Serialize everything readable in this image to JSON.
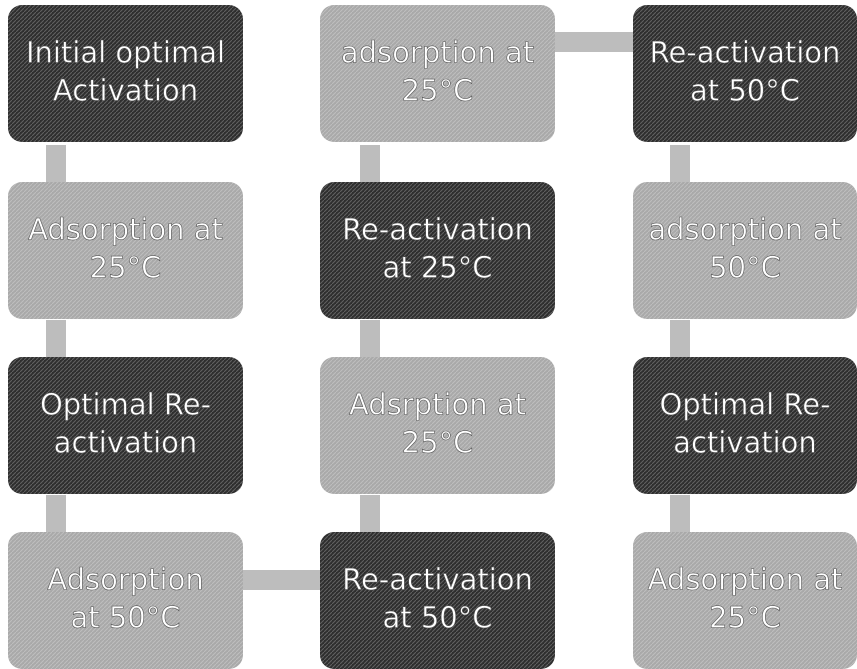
{
  "nodes": [
    {
      "lines": [
        "Initial optimal",
        "Activation"
      ],
      "color": "#2e2e2e"
    },
    {
      "lines": [
        "adsorption at",
        "25°C"
      ],
      "color": "#a9a9a9"
    },
    {
      "lines": [
        "Re-activation",
        "at 50°C"
      ],
      "color": "#2e2e2e"
    },
    {
      "lines": [
        "Adsorption at",
        "25°C"
      ],
      "color": "#a9a9a9"
    },
    {
      "lines": [
        "Re-activation",
        "at 25°C"
      ],
      "color": "#2e2e2e"
    },
    {
      "lines": [
        "adsorption at",
        "50°C"
      ],
      "color": "#a9a9a9"
    },
    {
      "lines": [
        "Optimal Re-",
        "activation"
      ],
      "color": "#2e2e2e"
    },
    {
      "lines": [
        "Adsrption at",
        "25°C"
      ],
      "color": "#a9a9a9"
    },
    {
      "lines": [
        "Optimal Re-",
        "activation"
      ],
      "color": "#2e2e2e"
    },
    {
      "lines": [
        "Adsorption",
        "at 50°C"
      ],
      "color": "#a9a9a9"
    },
    {
      "lines": [
        "Re-activation",
        "at 50°C"
      ],
      "color": "#2e2e2e"
    },
    {
      "lines": [
        "Adsorption at",
        "25°C"
      ],
      "color": "#a9a9a9"
    }
  ]
}
